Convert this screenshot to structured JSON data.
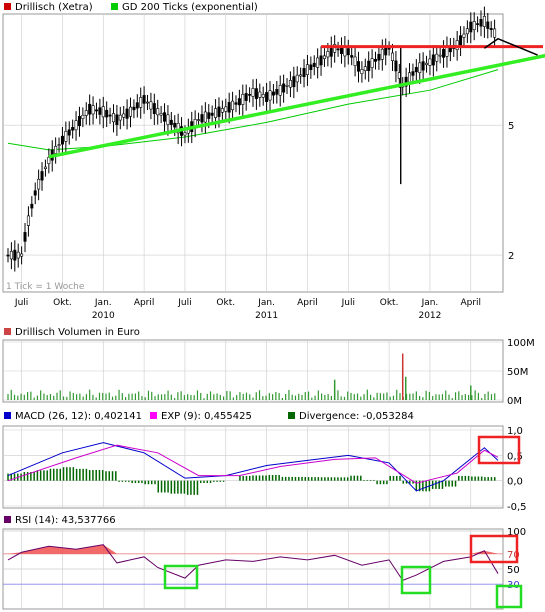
{
  "colors": {
    "price_candle": "#000000",
    "ma200": "#00cc00",
    "trend_green": "#33ee22",
    "trend_red": "#ee2222",
    "volume": "#339933",
    "macd": "#0000cc",
    "signal": "#cc00cc",
    "divergence": "#006600",
    "rsi": "#660066",
    "rsi_fill": "#ee4444",
    "grid": "#cccccc",
    "legend_box_red": "#cc0000",
    "legend_box_green": "#00cc00",
    "legend_box_macd": "#0000cc",
    "legend_box_exp": "#ff00ff",
    "legend_box_div": "#006600",
    "legend_box_rsi": "#660066"
  },
  "legend": {
    "price_name": "Drillisch (Xetra)",
    "ma_name": "GD 200 Ticks (exponential)",
    "tick_note": "1 Tick = 1 Woche",
    "volume_name": "Drillisch Volumen in Euro",
    "macd_name": "MACD (26, 12): 0,402141",
    "exp_name": "EXP (9): 0,455425",
    "div_name": "Divergence: -0,053284",
    "rsi_name": "RSI (14): 43,537766"
  },
  "axes": {
    "price_ticks": [
      "5",
      "2"
    ],
    "volume_ticks": [
      "100M",
      "50M",
      "0M"
    ],
    "macd_ticks": [
      "1,0",
      "0,5",
      "0,0",
      "-0,5"
    ],
    "rsi_ticks": [
      "100",
      "70",
      "50",
      "30"
    ],
    "x_months": [
      "Juli",
      "Okt.",
      "Jan.",
      "April",
      "Juli",
      "Okt.",
      "Jan.",
      "April",
      "Juli",
      "Okt.",
      "Jan.",
      "April"
    ],
    "x_years": [
      "2010",
      "2011",
      "2012"
    ]
  },
  "chart_data": [
    {
      "type": "line",
      "title": "Drillisch (Xetra)",
      "scale": "log",
      "x_range": [
        "2009-06",
        "2012-06"
      ],
      "y_range_approx": [
        1.8,
        10.5
      ],
      "price_points": [
        {
          "date": "2009-06",
          "value": 2.0
        },
        {
          "date": "2009-07",
          "value": 2.0
        },
        {
          "date": "2009-08",
          "value": 3.1
        },
        {
          "date": "2009-09",
          "value": 3.9
        },
        {
          "date": "2009-10",
          "value": 4.5
        },
        {
          "date": "2009-11",
          "value": 5.0
        },
        {
          "date": "2009-12",
          "value": 5.6
        },
        {
          "date": "2010-01",
          "value": 5.5
        },
        {
          "date": "2010-02",
          "value": 5.2
        },
        {
          "date": "2010-03",
          "value": 5.5
        },
        {
          "date": "2010-04",
          "value": 6.0
        },
        {
          "date": "2010-05",
          "value": 5.5
        },
        {
          "date": "2010-06",
          "value": 5.1
        },
        {
          "date": "2010-07",
          "value": 4.7
        },
        {
          "date": "2010-08",
          "value": 5.2
        },
        {
          "date": "2010-09",
          "value": 5.4
        },
        {
          "date": "2010-10",
          "value": 5.6
        },
        {
          "date": "2010-11",
          "value": 5.9
        },
        {
          "date": "2010-12",
          "value": 6.3
        },
        {
          "date": "2011-01",
          "value": 6.1
        },
        {
          "date": "2011-02",
          "value": 6.4
        },
        {
          "date": "2011-03",
          "value": 6.8
        },
        {
          "date": "2011-04",
          "value": 7.4
        },
        {
          "date": "2011-05",
          "value": 7.9
        },
        {
          "date": "2011-06",
          "value": 8.6
        },
        {
          "date": "2011-07",
          "value": 8.4
        },
        {
          "date": "2011-08",
          "value": 7.3
        },
        {
          "date": "2011-09",
          "value": 7.9
        },
        {
          "date": "2011-10",
          "value": 8.6
        },
        {
          "date": "2011-11",
          "value": 6.6
        },
        {
          "date": "2011-12",
          "value": 7.4
        },
        {
          "date": "2012-01",
          "value": 7.8
        },
        {
          "date": "2012-02",
          "value": 8.3
        },
        {
          "date": "2012-03",
          "value": 8.8
        },
        {
          "date": "2012-04",
          "value": 10.0
        },
        {
          "date": "2012-05",
          "value": 10.4
        },
        {
          "date": "2012-06",
          "value": 9.3
        }
      ],
      "ma200_points": [
        {
          "date": "2009-06",
          "value": 4.4
        },
        {
          "date": "2009-09",
          "value": 4.2
        },
        {
          "date": "2010-01",
          "value": 4.3
        },
        {
          "date": "2010-07",
          "value": 4.6
        },
        {
          "date": "2011-01",
          "value": 5.1
        },
        {
          "date": "2011-07",
          "value": 5.8
        },
        {
          "date": "2012-01",
          "value": 6.4
        },
        {
          "date": "2012-06",
          "value": 7.4
        }
      ],
      "annotations": [
        {
          "type": "trendline",
          "color": "green",
          "from": {
            "date": "2009-09",
            "value": 4.0
          },
          "to": {
            "date": "2012-07",
            "value": 8.3
          }
        },
        {
          "type": "resistance",
          "color": "red",
          "from": {
            "date": "2011-05",
            "value": 8.7
          },
          "to": {
            "date": "2012-07",
            "value": 8.7
          }
        },
        {
          "type": "projection",
          "color": "black",
          "points": [
            {
              "date": "2012-05",
              "value": 8.6
            },
            {
              "date": "2012-06",
              "value": 9.2
            },
            {
              "date": "2012-07",
              "value": 8.2
            }
          ]
        }
      ]
    },
    {
      "type": "bar",
      "title": "Drillisch Volumen in Euro",
      "y_range": [
        0,
        100
      ],
      "unit": "M",
      "spikes": [
        {
          "date": "2011-11",
          "value": 80
        },
        {
          "date": "2011-11",
          "value": 40
        },
        {
          "date": "2011-06",
          "value": 35
        },
        {
          "date": "2012-04",
          "value": 25
        }
      ],
      "baseline_range": [
        3,
        18
      ]
    },
    {
      "type": "line",
      "title": "MACD",
      "y_range": [
        -0.5,
        1.0
      ],
      "series": [
        {
          "name": "MACD (26, 12)",
          "last": 0.402141
        },
        {
          "name": "EXP (9)",
          "last": 0.455425
        },
        {
          "name": "Divergence",
          "last": -0.053284
        }
      ],
      "macd_points": [
        {
          "date": "2009-06",
          "value": 0.1
        },
        {
          "date": "2009-10",
          "value": 0.55
        },
        {
          "date": "2010-01",
          "value": 0.75
        },
        {
          "date": "2010-04",
          "value": 0.55
        },
        {
          "date": "2010-07",
          "value": 0.05
        },
        {
          "date": "2010-10",
          "value": 0.1
        },
        {
          "date": "2011-01",
          "value": 0.3
        },
        {
          "date": "2011-04",
          "value": 0.4
        },
        {
          "date": "2011-07",
          "value": 0.5
        },
        {
          "date": "2011-10",
          "value": 0.35
        },
        {
          "date": "2011-12",
          "value": -0.2
        },
        {
          "date": "2012-02",
          "value": 0.0
        },
        {
          "date": "2012-05",
          "value": 0.65
        },
        {
          "date": "2012-06",
          "value": 0.4
        }
      ],
      "exp_points": [
        {
          "date": "2009-06",
          "value": 0.0
        },
        {
          "date": "2009-11",
          "value": 0.45
        },
        {
          "date": "2010-02",
          "value": 0.7
        },
        {
          "date": "2010-05",
          "value": 0.55
        },
        {
          "date": "2010-08",
          "value": 0.1
        },
        {
          "date": "2010-11",
          "value": 0.1
        },
        {
          "date": "2011-02",
          "value": 0.28
        },
        {
          "date": "2011-06",
          "value": 0.42
        },
        {
          "date": "2011-09",
          "value": 0.45
        },
        {
          "date": "2011-12",
          "value": -0.05
        },
        {
          "date": "2012-03",
          "value": 0.15
        },
        {
          "date": "2012-05",
          "value": 0.6
        },
        {
          "date": "2012-06",
          "value": 0.46
        }
      ]
    },
    {
      "type": "line",
      "title": "RSI (14)",
      "y_range": [
        0,
        100
      ],
      "overbought": 70,
      "oversold": 30,
      "last": 43.537766,
      "rsi_points": [
        {
          "date": "2009-06",
          "value": 62
        },
        {
          "date": "2009-07",
          "value": 72
        },
        {
          "date": "2009-09",
          "value": 80
        },
        {
          "date": "2009-11",
          "value": 76
        },
        {
          "date": "2010-01",
          "value": 82
        },
        {
          "date": "2010-02",
          "value": 58
        },
        {
          "date": "2010-04",
          "value": 66
        },
        {
          "date": "2010-05",
          "value": 52
        },
        {
          "date": "2010-07",
          "value": 38
        },
        {
          "date": "2010-08",
          "value": 55
        },
        {
          "date": "2010-10",
          "value": 62
        },
        {
          "date": "2010-12",
          "value": 60
        },
        {
          "date": "2011-02",
          "value": 66
        },
        {
          "date": "2011-04",
          "value": 62
        },
        {
          "date": "2011-06",
          "value": 68
        },
        {
          "date": "2011-08",
          "value": 55
        },
        {
          "date": "2011-10",
          "value": 62
        },
        {
          "date": "2011-11",
          "value": 35
        },
        {
          "date": "2011-12",
          "value": 42
        },
        {
          "date": "2012-02",
          "value": 60
        },
        {
          "date": "2012-04",
          "value": 66
        },
        {
          "date": "2012-05",
          "value": 74
        },
        {
          "date": "2012-06",
          "value": 44
        }
      ],
      "annotations": [
        {
          "type": "box",
          "color": "green",
          "around": "2010-07"
        },
        {
          "type": "box",
          "color": "green",
          "around": "2011-11"
        },
        {
          "type": "box",
          "color": "green",
          "around": "2012-06"
        },
        {
          "type": "box",
          "color": "red",
          "around": "2012-05"
        }
      ]
    }
  ]
}
